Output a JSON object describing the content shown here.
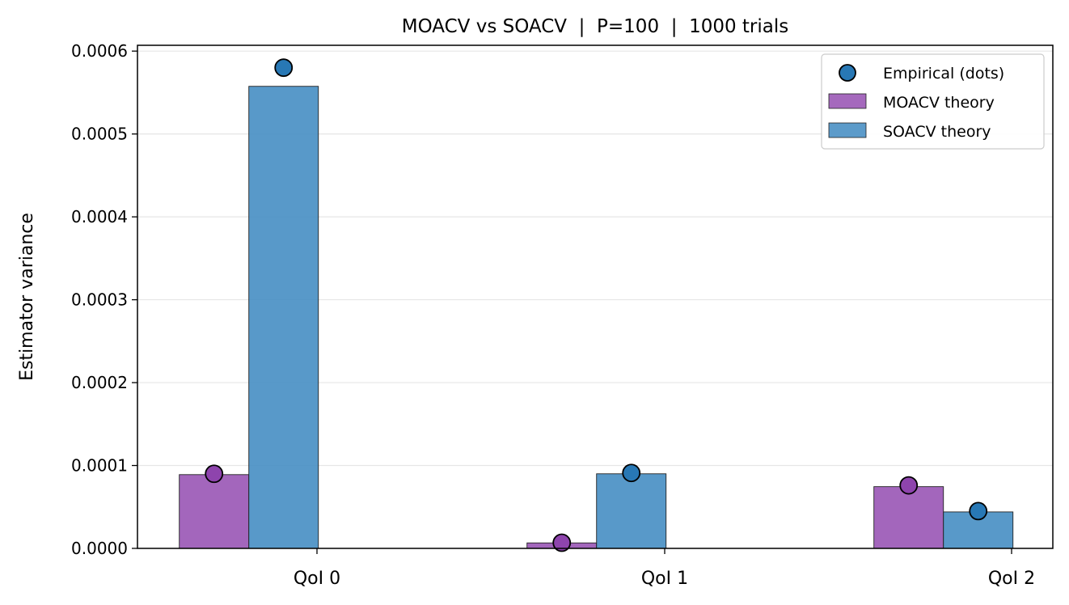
{
  "chart_data": {
    "type": "bar",
    "title": "MOACV vs SOACV  |  P=100  |  1000 trials",
    "xlabel": "",
    "ylabel": "Estimator variance",
    "categories": [
      "QoI 0",
      "QoI 1",
      "QoI 2"
    ],
    "ylim": [
      0,
      0.000607
    ],
    "yticks": [
      "0.0000",
      "0.0001",
      "0.0002",
      "0.0003",
      "0.0004",
      "0.0005",
      "0.0006"
    ],
    "ytick_values": [
      0,
      0.0001,
      0.0002,
      0.0003,
      0.0004,
      0.0005,
      0.0006
    ],
    "grid": "horizontal",
    "legend_position": "top-right",
    "series": [
      {
        "name": "MOACV theory",
        "color": "#9b59b6",
        "values": [
          8.9e-05,
          6.6e-06,
          7.45e-05
        ],
        "empirical": [
          9e-05,
          6.8e-06,
          7.6e-05
        ]
      },
      {
        "name": "SOACV theory",
        "color": "#4a90c4",
        "values": [
          0.0005575,
          9e-05,
          4.4e-05
        ],
        "empirical": [
          0.00058,
          9.1e-05,
          4.5e-05
        ]
      }
    ],
    "empirical_legend": "Empirical (dots)",
    "empirical_color": "#2878b5"
  }
}
